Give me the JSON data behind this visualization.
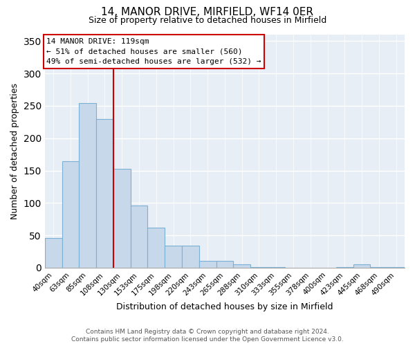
{
  "title": "14, MANOR DRIVE, MIRFIELD, WF14 0ER",
  "subtitle": "Size of property relative to detached houses in Mirfield",
  "xlabel": "Distribution of detached houses by size in Mirfield",
  "ylabel": "Number of detached properties",
  "categories": [
    "40sqm",
    "63sqm",
    "85sqm",
    "108sqm",
    "130sqm",
    "153sqm",
    "175sqm",
    "198sqm",
    "220sqm",
    "243sqm",
    "265sqm",
    "288sqm",
    "310sqm",
    "333sqm",
    "355sqm",
    "378sqm",
    "400sqm",
    "423sqm",
    "445sqm",
    "468sqm",
    "490sqm"
  ],
  "values": [
    46,
    165,
    254,
    230,
    153,
    96,
    62,
    34,
    34,
    11,
    11,
    5,
    1,
    1,
    0,
    0,
    0,
    1,
    5,
    1,
    1
  ],
  "bar_color": "#c8d8eb",
  "bar_edge_color": "#7ab0d4",
  "highlight_line_color": "#cc0000",
  "ylim": [
    0,
    360
  ],
  "yticks": [
    0,
    50,
    100,
    150,
    200,
    250,
    300,
    350
  ],
  "annotation_title": "14 MANOR DRIVE: 119sqm",
  "annotation_line1": "← 51% of detached houses are smaller (560)",
  "annotation_line2": "49% of semi-detached houses are larger (532) →",
  "annotation_box_color": "#ffffff",
  "annotation_box_edge": "#cc0000",
  "footer1": "Contains HM Land Registry data © Crown copyright and database right 2024.",
  "footer2": "Contains public sector information licensed under the Open Government Licence v3.0.",
  "background_color": "#ffffff",
  "plot_bg_color": "#e8eef5"
}
